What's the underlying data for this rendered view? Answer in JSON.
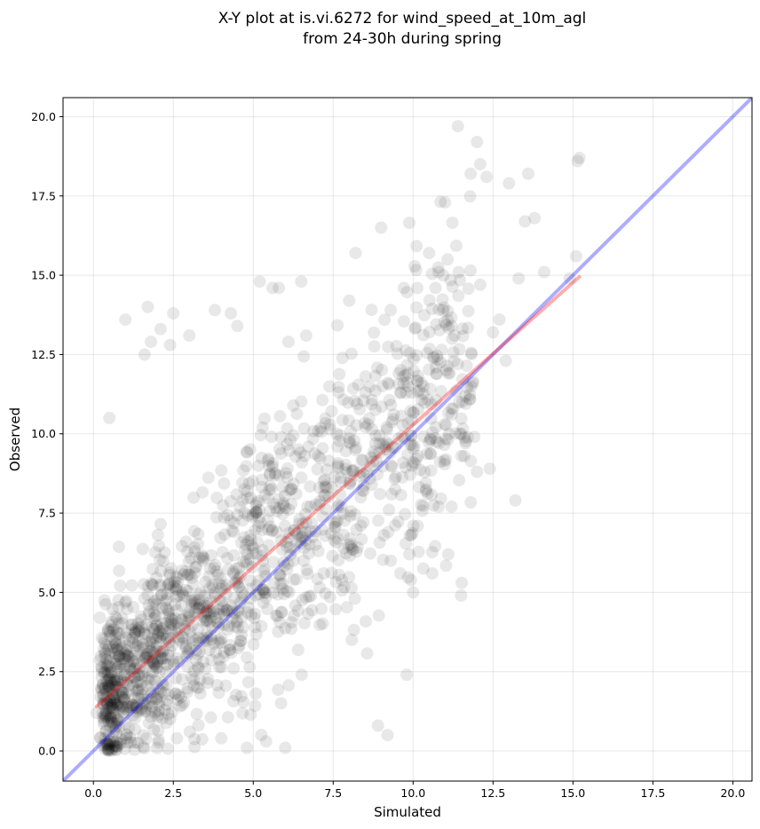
{
  "chart_data": {
    "type": "scatter",
    "title": "X-Y plot at is.vi.6272 for wind_speed_at_10m_agl",
    "subtitle": "from 24-30h during spring",
    "xlabel": "Simulated",
    "ylabel": "Observed",
    "xlim": [
      -0.95,
      20.6
    ],
    "ylim": [
      -0.95,
      20.6
    ],
    "xticks": [
      "0.0",
      "2.5",
      "5.0",
      "7.5",
      "10.0",
      "12.5",
      "15.0",
      "17.5",
      "20.0"
    ],
    "yticks": [
      "0.0",
      "2.5",
      "5.0",
      "7.5",
      "10.0",
      "12.5",
      "15.0",
      "17.5",
      "20.0"
    ],
    "grid": true,
    "point_color": "#000000",
    "point_opacity": 0.09,
    "reference_line": {
      "x": [
        -0.95,
        20.6
      ],
      "y": [
        -0.95,
        20.6
      ],
      "color": "#0000ff",
      "opacity": 0.32
    },
    "regression_line": {
      "x": [
        0.1,
        15.2
      ],
      "y": [
        1.4,
        14.95
      ],
      "color": "#ff0000",
      "opacity": 0.32
    },
    "outlier_points": [
      [
        11.4,
        19.7
      ],
      [
        12.0,
        19.2
      ],
      [
        12.1,
        18.5
      ],
      [
        11.8,
        18.2
      ],
      [
        12.3,
        18.1
      ],
      [
        13.0,
        17.9
      ],
      [
        15.2,
        18.7
      ],
      [
        15.15,
        18.6
      ],
      [
        13.6,
        18.2
      ],
      [
        13.8,
        16.8
      ],
      [
        13.5,
        16.7
      ],
      [
        11.0,
        17.3
      ],
      [
        9.0,
        16.5
      ],
      [
        8.2,
        15.7
      ],
      [
        10.5,
        15.7
      ],
      [
        10.8,
        15.1
      ],
      [
        14.1,
        15.1
      ],
      [
        14.9,
        14.9
      ],
      [
        15.1,
        15.6
      ],
      [
        13.3,
        14.9
      ],
      [
        12.1,
        14.7
      ],
      [
        10.7,
        14.6
      ],
      [
        5.2,
        14.8
      ],
      [
        6.5,
        14.8
      ],
      [
        5.6,
        14.6
      ],
      [
        5.8,
        14.6
      ],
      [
        0.5,
        10.5
      ],
      [
        1.7,
        14.0
      ],
      [
        1.0,
        13.6
      ],
      [
        2.5,
        13.8
      ],
      [
        4.3,
        13.8
      ],
      [
        3.8,
        13.9
      ],
      [
        13.2,
        7.9
      ],
      [
        12.4,
        8.9
      ],
      [
        11.5,
        4.9
      ],
      [
        9.8,
        2.4
      ],
      [
        9.2,
        0.5
      ],
      [
        8.9,
        0.8
      ],
      [
        12.9,
        12.3
      ],
      [
        12.5,
        13.2
      ],
      [
        12.7,
        13.6
      ],
      [
        11.2,
        13.4
      ],
      [
        11.4,
        12.2
      ],
      [
        11.2,
        10.8
      ],
      [
        10.0,
        9.1
      ],
      [
        10.4,
        8.2
      ],
      [
        10.8,
        7.7
      ],
      [
        11.2,
        7.7
      ],
      [
        12.0,
        8.8
      ],
      [
        11.6,
        9.3
      ],
      [
        9.3,
        6.0
      ],
      [
        9.9,
        6.8
      ],
      [
        10.0,
        5.0
      ],
      [
        10.6,
        5.6
      ],
      [
        11.1,
        6.2
      ],
      [
        9.6,
        5.6
      ],
      [
        4.8,
        0.1
      ],
      [
        4.0,
        0.4
      ],
      [
        5.4,
        0.3
      ],
      [
        6.0,
        0.1
      ],
      [
        0.2,
        4.2
      ],
      [
        0.1,
        1.2
      ],
      [
        0.5,
        0.3
      ],
      [
        3.0,
        13.1
      ],
      [
        2.4,
        12.8
      ],
      [
        1.6,
        12.5
      ],
      [
        1.8,
        12.9
      ],
      [
        2.1,
        13.3
      ],
      [
        4.5,
        13.4
      ],
      [
        6.1,
        12.9
      ],
      [
        8.0,
        14.2
      ],
      [
        9.3,
        13.9
      ]
    ]
  }
}
